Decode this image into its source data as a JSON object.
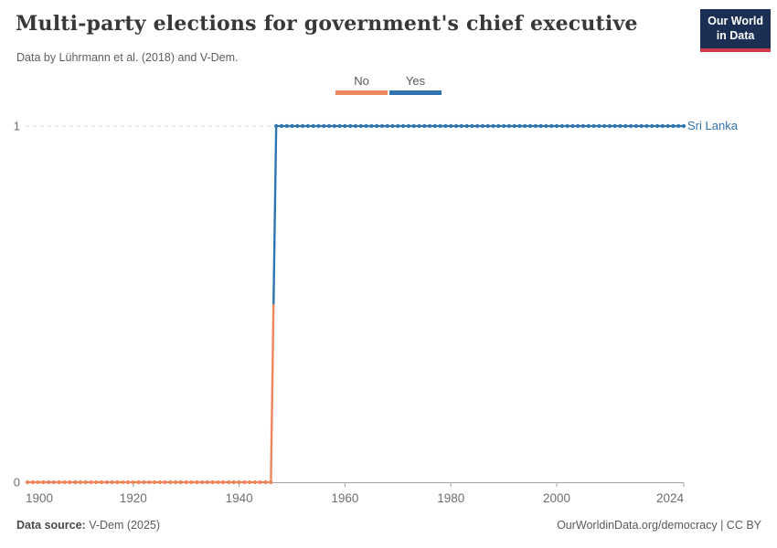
{
  "header": {
    "title": "Multi-party elections for government's chief executive",
    "subtitle": "Data by Lührmann et al. (2018) and V-Dem.",
    "logo": {
      "line1": "Our World",
      "line2": "in Data"
    }
  },
  "legend": {
    "items": [
      {
        "label": "No",
        "color": "#EE855D"
      },
      {
        "label": "Yes",
        "color": "#2F74AE"
      }
    ]
  },
  "chart_data": {
    "type": "line",
    "entity": "Sri Lanka",
    "x_domain": [
      1900,
      2024
    ],
    "y_domain": [
      0,
      1
    ],
    "x_ticks": [
      1900,
      1920,
      1940,
      1960,
      1980,
      2000,
      2024
    ],
    "y_ticks": [
      0,
      1
    ],
    "marker": "circle",
    "grid": "dashed-horizontal",
    "legend_position": "top-center",
    "series": [
      {
        "name": "No",
        "color": "#EE855D",
        "value": 0,
        "start_year": 1900,
        "end_year": 1946
      },
      {
        "name": "Yes",
        "color": "#2F74AE",
        "value": 1,
        "start_year": 1947,
        "end_year": 2024
      }
    ]
  },
  "footer": {
    "source_label": "Data source:",
    "source_value": " V-Dem (2025)",
    "credit": "OurWorldinData.org/democracy | CC BY"
  }
}
